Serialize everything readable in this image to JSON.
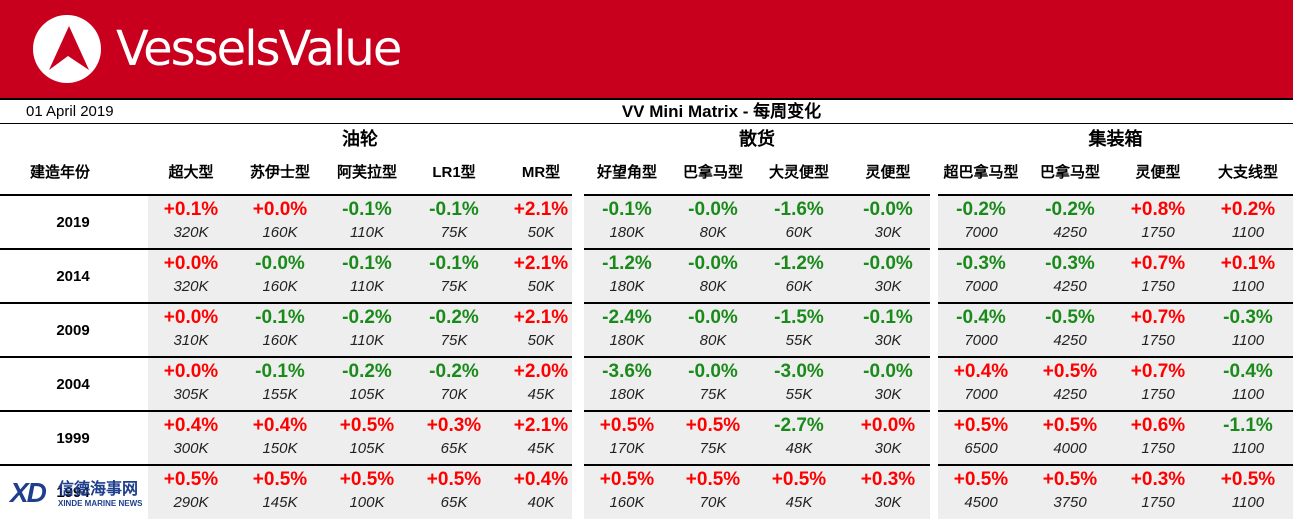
{
  "brand": {
    "name": "VesselsValue",
    "logo_icon": "triangle-circle-logo",
    "colors": {
      "banner": "#c8001e",
      "up": "#ff0000",
      "down": "#1a8a1a"
    }
  },
  "report": {
    "date": "01 April 2019",
    "title": "VV Mini Matrix - 每周变化",
    "year_header": "建造年份"
  },
  "groups": [
    {
      "label": "油轮",
      "columns": [
        "超大型",
        "苏伊士型",
        "阿芙拉型",
        "LR1型",
        "MR型"
      ]
    },
    {
      "label": "散货",
      "columns": [
        "好望角型",
        "巴拿马型",
        "大灵便型",
        "灵便型"
      ]
    },
    {
      "label": "集装箱",
      "columns": [
        "超巴拿马型",
        "巴拿马型",
        "灵便型",
        "大支线型"
      ]
    }
  ],
  "rows": [
    {
      "year": "2019",
      "cells": [
        {
          "pct": "+0.1%",
          "val": "320K"
        },
        {
          "pct": "+0.0%",
          "val": "160K"
        },
        {
          "pct": "-0.1%",
          "val": "110K"
        },
        {
          "pct": "-0.1%",
          "val": "75K"
        },
        {
          "pct": "+2.1%",
          "val": "50K"
        },
        {
          "pct": "-0.1%",
          "val": "180K"
        },
        {
          "pct": "-0.0%",
          "val": "80K"
        },
        {
          "pct": "-1.6%",
          "val": "60K"
        },
        {
          "pct": "-0.0%",
          "val": "30K"
        },
        {
          "pct": "-0.2%",
          "val": "7000"
        },
        {
          "pct": "-0.2%",
          "val": "4250"
        },
        {
          "pct": "+0.8%",
          "val": "1750"
        },
        {
          "pct": "+0.2%",
          "val": "1100"
        }
      ]
    },
    {
      "year": "2014",
      "cells": [
        {
          "pct": "+0.0%",
          "val": "320K"
        },
        {
          "pct": "-0.0%",
          "val": "160K"
        },
        {
          "pct": "-0.1%",
          "val": "110K"
        },
        {
          "pct": "-0.1%",
          "val": "75K"
        },
        {
          "pct": "+2.1%",
          "val": "50K"
        },
        {
          "pct": "-1.2%",
          "val": "180K"
        },
        {
          "pct": "-0.0%",
          "val": "80K"
        },
        {
          "pct": "-1.2%",
          "val": "60K"
        },
        {
          "pct": "-0.0%",
          "val": "30K"
        },
        {
          "pct": "-0.3%",
          "val": "7000"
        },
        {
          "pct": "-0.3%",
          "val": "4250"
        },
        {
          "pct": "+0.7%",
          "val": "1750"
        },
        {
          "pct": "+0.1%",
          "val": "1100"
        }
      ]
    },
    {
      "year": "2009",
      "cells": [
        {
          "pct": "+0.0%",
          "val": "310K"
        },
        {
          "pct": "-0.1%",
          "val": "160K"
        },
        {
          "pct": "-0.2%",
          "val": "110K"
        },
        {
          "pct": "-0.2%",
          "val": "75K"
        },
        {
          "pct": "+2.1%",
          "val": "50K"
        },
        {
          "pct": "-2.4%",
          "val": "180K"
        },
        {
          "pct": "-0.0%",
          "val": "80K"
        },
        {
          "pct": "-1.5%",
          "val": "55K"
        },
        {
          "pct": "-0.1%",
          "val": "30K"
        },
        {
          "pct": "-0.4%",
          "val": "7000"
        },
        {
          "pct": "-0.5%",
          "val": "4250"
        },
        {
          "pct": "+0.7%",
          "val": "1750"
        },
        {
          "pct": "-0.3%",
          "val": "1100"
        }
      ]
    },
    {
      "year": "2004",
      "cells": [
        {
          "pct": "+0.0%",
          "val": "305K"
        },
        {
          "pct": "-0.1%",
          "val": "155K"
        },
        {
          "pct": "-0.2%",
          "val": "105K"
        },
        {
          "pct": "-0.2%",
          "val": "70K"
        },
        {
          "pct": "+2.0%",
          "val": "45K"
        },
        {
          "pct": "-3.6%",
          "val": "180K"
        },
        {
          "pct": "-0.0%",
          "val": "75K"
        },
        {
          "pct": "-3.0%",
          "val": "55K"
        },
        {
          "pct": "-0.0%",
          "val": "30K"
        },
        {
          "pct": "+0.4%",
          "val": "7000"
        },
        {
          "pct": "+0.5%",
          "val": "4250"
        },
        {
          "pct": "+0.7%",
          "val": "1750"
        },
        {
          "pct": "-0.4%",
          "val": "1100"
        }
      ]
    },
    {
      "year": "1999",
      "cells": [
        {
          "pct": "+0.4%",
          "val": "300K"
        },
        {
          "pct": "+0.4%",
          "val": "150K"
        },
        {
          "pct": "+0.5%",
          "val": "105K"
        },
        {
          "pct": "+0.3%",
          "val": "65K"
        },
        {
          "pct": "+2.1%",
          "val": "45K"
        },
        {
          "pct": "+0.5%",
          "val": "170K"
        },
        {
          "pct": "+0.5%",
          "val": "75K"
        },
        {
          "pct": "-2.7%",
          "val": "48K"
        },
        {
          "pct": "+0.0%",
          "val": "30K"
        },
        {
          "pct": "+0.5%",
          "val": "6500"
        },
        {
          "pct": "+0.5%",
          "val": "4000"
        },
        {
          "pct": "+0.6%",
          "val": "1750"
        },
        {
          "pct": "-1.1%",
          "val": "1100"
        }
      ]
    },
    {
      "year": "1994",
      "cells": [
        {
          "pct": "+0.5%",
          "val": "290K"
        },
        {
          "pct": "+0.5%",
          "val": "145K"
        },
        {
          "pct": "+0.5%",
          "val": "100K"
        },
        {
          "pct": "+0.5%",
          "val": "65K"
        },
        {
          "pct": "+0.4%",
          "val": "40K"
        },
        {
          "pct": "+0.5%",
          "val": "160K"
        },
        {
          "pct": "+0.5%",
          "val": "70K"
        },
        {
          "pct": "+0.5%",
          "val": "45K"
        },
        {
          "pct": "+0.3%",
          "val": "30K"
        },
        {
          "pct": "+0.5%",
          "val": "4500"
        },
        {
          "pct": "+0.5%",
          "val": "3750"
        },
        {
          "pct": "+0.3%",
          "val": "1750"
        },
        {
          "pct": "+0.5%",
          "val": "1100"
        }
      ]
    }
  ],
  "watermark": {
    "logo": "XD",
    "chinese": "信德海事网",
    "english": "XINDE MARINE NEWS"
  }
}
